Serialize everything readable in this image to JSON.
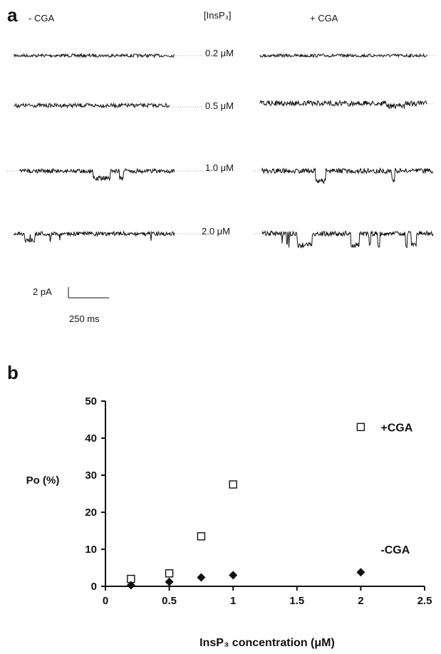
{
  "panel_a": {
    "letter": "a",
    "col_minus": "- CGA",
    "col_center": "[InsP₃]",
    "col_plus": "+ CGA",
    "concentrations": [
      "0.2 μM",
      "0.5 μM",
      "1.0 μM",
      "2.0 μM"
    ],
    "scale_current": "2 pA",
    "scale_time": "250 ms"
  },
  "panel_b": {
    "letter": "b"
  },
  "chart_data": {
    "type": "scatter",
    "xlabel": "InsP₃ concentration (μM)",
    "ylabel": "Po (%)",
    "xlim": [
      0,
      2.5
    ],
    "ylim": [
      0,
      50
    ],
    "x_ticks": [
      "0",
      "0.5",
      "1",
      "1.5",
      "2",
      "2.5"
    ],
    "y_ticks": [
      "0",
      "10",
      "20",
      "30",
      "40",
      "50"
    ],
    "series": [
      {
        "name": "+CGA",
        "marker": "open-square",
        "color": "#111111",
        "x": [
          0.2,
          0.5,
          0.75,
          1.0,
          2.0
        ],
        "y": [
          2,
          3.5,
          13.5,
          27.5,
          43
        ]
      },
      {
        "name": "-CGA",
        "marker": "filled-diamond",
        "color": "#111111",
        "x": [
          0.2,
          0.5,
          0.75,
          1.0,
          2.0
        ],
        "y": [
          0.3,
          1.2,
          2.4,
          3.0,
          3.8
        ]
      }
    ]
  }
}
